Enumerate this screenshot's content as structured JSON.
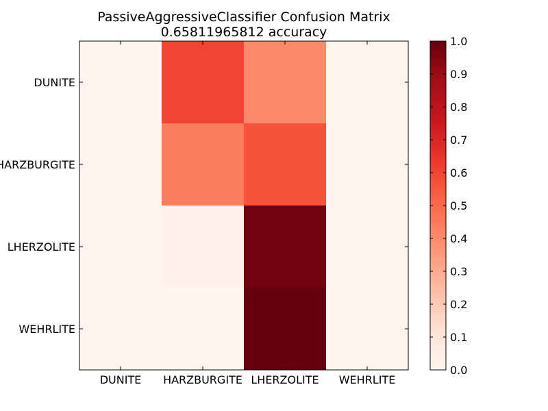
{
  "chart_data": {
    "type": "heatmap",
    "title": "PassiveAggressiveClassifier Confusion Matrix",
    "subtitle": "0.65811965812 accuracy",
    "xlabel": "",
    "ylabel": "",
    "x_categories": [
      "DUNITE",
      "HARZBURGITE",
      "LHERZOLITE",
      "WEHRLITE"
    ],
    "y_categories": [
      "DUNITE",
      "HARZBURGITE",
      "LHERZOLITE",
      "WEHRLITE"
    ],
    "values": [
      [
        0.0,
        0.6,
        0.4,
        0.0
      ],
      [
        0.0,
        0.44,
        0.56,
        0.0
      ],
      [
        0.0,
        0.02,
        0.98,
        0.0
      ],
      [
        0.0,
        0.0,
        1.0,
        0.0
      ]
    ],
    "colormap": "Reds",
    "color_stops": [
      "#fff5f0",
      "#fee0d2",
      "#fcbba1",
      "#fc9272",
      "#fb6a4a",
      "#ef3b2c",
      "#cb181d",
      "#a50f15",
      "#67000d"
    ],
    "colorbar": {
      "range": [
        0.0,
        1.0
      ],
      "ticks": [
        "0.0",
        "0.1",
        "0.2",
        "0.3",
        "0.4",
        "0.5",
        "0.6",
        "0.7",
        "0.8",
        "0.9",
        "1.0"
      ]
    },
    "grid": false,
    "legend": "colorbar-right"
  }
}
